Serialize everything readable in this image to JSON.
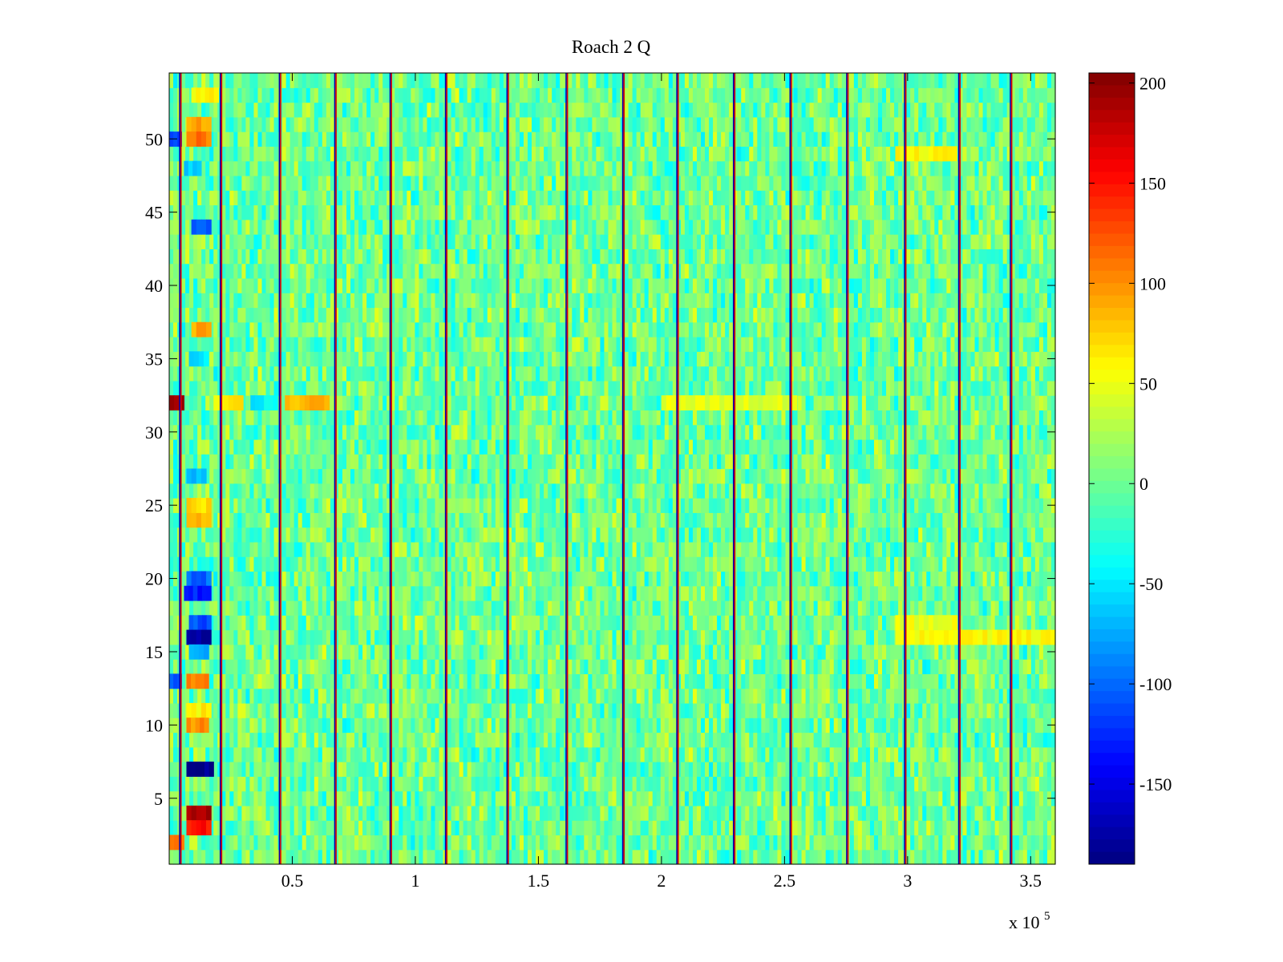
{
  "chart_data": {
    "type": "heatmap",
    "title": "Roach 2 Q",
    "xlabel": "",
    "ylabel": "",
    "x_exponent_label": "x 10",
    "x_exponent_power": "5",
    "xlim": [
      0,
      3.6
    ],
    "ylim": [
      0.5,
      54.5
    ],
    "x_ticks": [
      0.5,
      1,
      1.5,
      2,
      2.5,
      3,
      3.5
    ],
    "x_tick_labels": [
      "0.5",
      "1",
      "1.5",
      "2",
      "2.5",
      "3",
      "3.5"
    ],
    "y_ticks": [
      5,
      10,
      15,
      20,
      25,
      30,
      35,
      40,
      45,
      50
    ],
    "y_tick_labels": [
      "5",
      "10",
      "15",
      "20",
      "25",
      "30",
      "35",
      "40",
      "45",
      "50"
    ],
    "rows": 54,
    "colormap": "jet",
    "clim": [
      -190,
      205
    ],
    "colorbar_ticks": [
      200,
      150,
      100,
      50,
      0,
      -50,
      -100,
      -150
    ],
    "colorbar_tick_labels": [
      "200",
      "150",
      "100",
      "50",
      "0",
      "-50",
      "-100",
      "-150"
    ],
    "vertical_stripes_x": [
      0.045,
      0.21,
      0.45,
      0.675,
      0.9,
      1.125,
      1.375,
      1.615,
      1.845,
      2.065,
      2.295,
      2.525,
      2.755,
      2.99,
      3.21,
      3.42
    ],
    "background_level": 0,
    "hotspots": [
      {
        "row": 32,
        "x_from": 0.0,
        "x_to": 0.06,
        "value": 200
      },
      {
        "row": 32,
        "x_from": 0.18,
        "x_to": 0.3,
        "value": 60
      },
      {
        "row": 32,
        "x_from": 0.33,
        "x_to": 0.44,
        "value": -45
      },
      {
        "row": 32,
        "x_from": 0.47,
        "x_to": 0.65,
        "value": 85
      },
      {
        "row": 32,
        "x_from": 2.0,
        "x_to": 2.55,
        "value": 45
      },
      {
        "row": 53,
        "x_from": 0.09,
        "x_to": 0.2,
        "value": 60
      },
      {
        "row": 51,
        "x_from": 0.07,
        "x_to": 0.17,
        "value": 95
      },
      {
        "row": 50,
        "x_from": 0.07,
        "x_to": 0.17,
        "value": 110
      },
      {
        "row": 50,
        "x_from": 0.0,
        "x_to": 0.05,
        "value": -120
      },
      {
        "row": 48,
        "x_from": 0.06,
        "x_to": 0.13,
        "value": -60
      },
      {
        "row": 44,
        "x_from": 0.09,
        "x_to": 0.17,
        "value": -110
      },
      {
        "row": 37,
        "x_from": 0.09,
        "x_to": 0.17,
        "value": 90
      },
      {
        "row": 35,
        "x_from": 0.08,
        "x_to": 0.16,
        "value": -50
      },
      {
        "row": 27,
        "x_from": 0.07,
        "x_to": 0.15,
        "value": -70
      },
      {
        "row": 24,
        "x_from": 0.07,
        "x_to": 0.17,
        "value": 80
      },
      {
        "row": 25,
        "x_from": 0.07,
        "x_to": 0.17,
        "value": 70
      },
      {
        "row": 20,
        "x_from": 0.07,
        "x_to": 0.17,
        "value": -100
      },
      {
        "row": 19,
        "x_from": 0.06,
        "x_to": 0.17,
        "value": -130
      },
      {
        "row": 17,
        "x_from": 0.08,
        "x_to": 0.17,
        "value": -110
      },
      {
        "row": 16,
        "x_from": 0.07,
        "x_to": 0.17,
        "value": -180
      },
      {
        "row": 15,
        "x_from": 0.08,
        "x_to": 0.16,
        "value": -80
      },
      {
        "row": 13,
        "x_from": 0.07,
        "x_to": 0.16,
        "value": 110
      },
      {
        "row": 13,
        "x_from": 0.0,
        "x_to": 0.05,
        "value": -110
      },
      {
        "row": 11,
        "x_from": 0.07,
        "x_to": 0.17,
        "value": 60
      },
      {
        "row": 10,
        "x_from": 0.07,
        "x_to": 0.16,
        "value": 100
      },
      {
        "row": 7,
        "x_from": 0.07,
        "x_to": 0.18,
        "value": -185
      },
      {
        "row": 4,
        "x_from": 0.07,
        "x_to": 0.17,
        "value": 190
      },
      {
        "row": 3,
        "x_from": 0.07,
        "x_to": 0.17,
        "value": 150
      },
      {
        "row": 2,
        "x_from": 0.0,
        "x_to": 0.06,
        "value": 110
      },
      {
        "row": 16,
        "x_from": 2.95,
        "x_to": 3.6,
        "value": 55
      },
      {
        "row": 17,
        "x_from": 2.95,
        "x_to": 3.2,
        "value": 50
      },
      {
        "row": 49,
        "x_from": 2.95,
        "x_to": 3.2,
        "value": 60
      }
    ]
  }
}
